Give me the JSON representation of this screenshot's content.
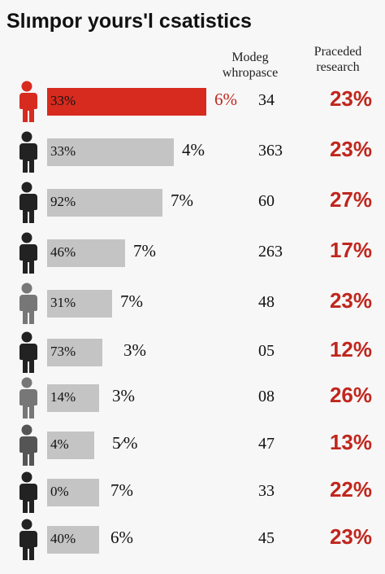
{
  "chart_data": {
    "type": "table",
    "title": "Slımpor yours'l csatistics",
    "columns": [
      "",
      "",
      "Modeg whropasce",
      "Praceded research"
    ],
    "headers": {
      "col1": [
        "Modeg",
        "whropasce"
      ],
      "col2": [
        "Praceded",
        "research"
      ]
    },
    "highlight_color": "#d72b1f",
    "bar_color": "#c4c4c4",
    "research_color": "#c0261d",
    "rows": [
      {
        "bar_label": "33%",
        "bar_value": 33,
        "pct": "6%",
        "number": "34",
        "research": "23%",
        "highlight": true,
        "icon_shade": "#d72b1f"
      },
      {
        "bar_label": "33%",
        "bar_value": 33,
        "pct": "4%",
        "number": "363",
        "research": "23%",
        "highlight": false,
        "icon_shade": "#222222"
      },
      {
        "bar_label": "92%",
        "bar_value": 92,
        "pct": "7%",
        "number": "60",
        "research": "27%",
        "highlight": false,
        "icon_shade": "#222222"
      },
      {
        "bar_label": "46%",
        "bar_value": 46,
        "pct": "7%",
        "number": "263",
        "research": "17%",
        "highlight": false,
        "icon_shade": "#222222"
      },
      {
        "bar_label": "31%",
        "bar_value": 31,
        "pct": "7%",
        "number": "48",
        "research": "23%",
        "highlight": false,
        "icon_shade": "#777777"
      },
      {
        "bar_label": "73%",
        "bar_value": 73,
        "pct": "3%",
        "number": "05",
        "research": "12%",
        "highlight": false,
        "icon_shade": "#222222"
      },
      {
        "bar_label": "14%",
        "bar_value": 14,
        "pct": "3%",
        "number": "08",
        "research": "26%",
        "highlight": false,
        "icon_shade": "#777777"
      },
      {
        "bar_label": "4%",
        "bar_value": 4,
        "pct": "5⁄%",
        "number": "47",
        "research": "13%",
        "highlight": false,
        "icon_shade": "#555555"
      },
      {
        "bar_label": "0%",
        "bar_value": 0,
        "pct": "7%",
        "number": "33",
        "research": "22%",
        "highlight": false,
        "icon_shade": "#222222"
      },
      {
        "bar_label": "40%",
        "bar_value": 40,
        "pct": "6%",
        "number": "45",
        "research": "23%",
        "highlight": false,
        "icon_shade": "#222222"
      }
    ]
  }
}
